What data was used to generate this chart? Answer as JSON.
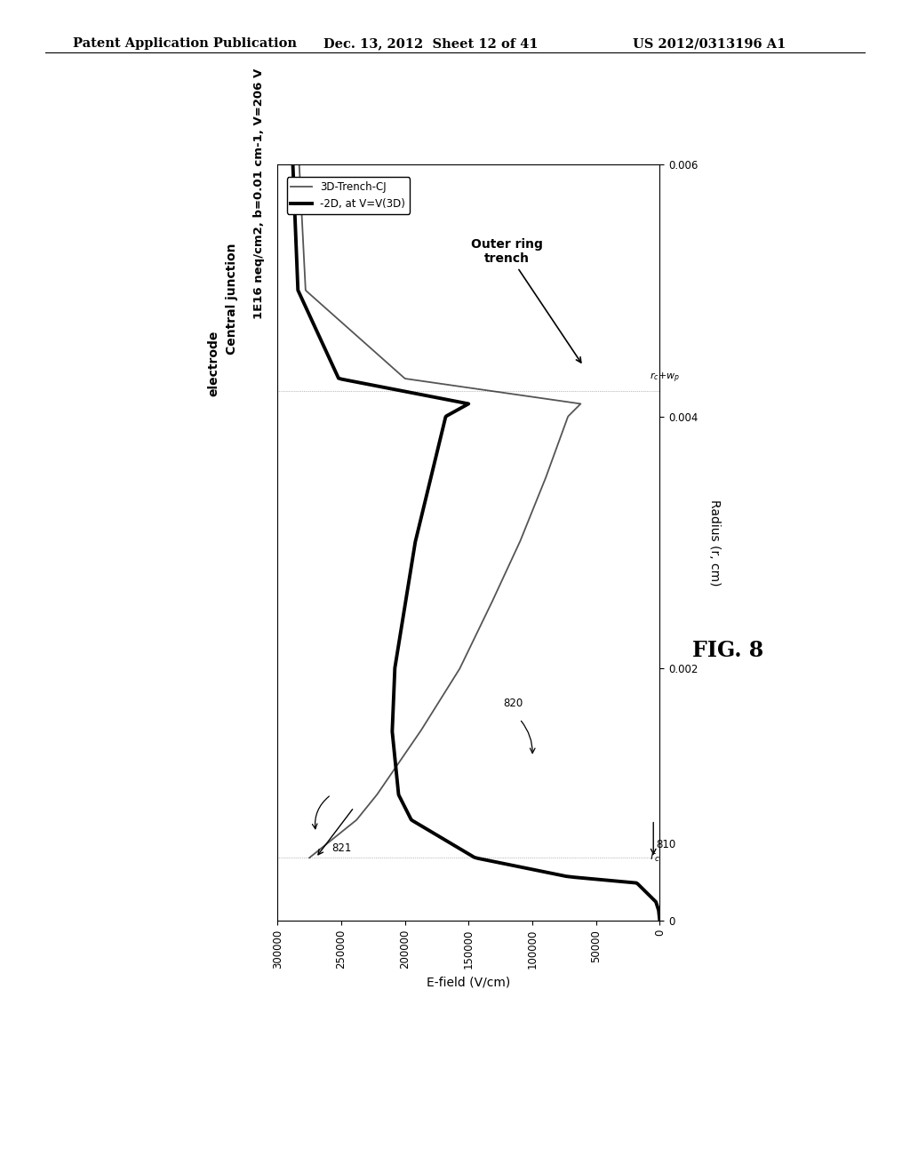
{
  "header_left": "Patent Application Publication",
  "header_center": "Dec. 13, 2012  Sheet 12 of 41",
  "header_right": "US 2012/0313196 A1",
  "fig_label": "FIG. 8",
  "title_line1": "1E16 neq/cm2, b=0.01 cm-1, V=206 V",
  "title_line2": "Central junction",
  "title_line3": "electrode",
  "xlabel": "E-field (V/cm)",
  "ylabel": "Radius (r, cm)",
  "legend_3d": "3D-Trench-CJ",
  "legend_2d": "-2D, at V=V(3D)",
  "annotation_outer": "Outer ring\ntrench",
  "x_ticks": [
    0,
    50000,
    100000,
    150000,
    200000,
    250000,
    300000
  ],
  "x_tick_labels": [
    "0",
    "50000",
    "100000",
    "150000",
    "200000",
    "250000",
    "300000"
  ],
  "y_ticks": [
    0,
    0.002,
    0.004,
    0.006
  ],
  "y_tick_labels": [
    "0",
    "0.002",
    "0.004",
    "0.006"
  ],
  "rc": 0.0005,
  "rcp": 0.0042,
  "r_outer": 0.006,
  "background_color": "#ffffff",
  "line_color_3d": "#555555",
  "line_color_2d": "#000000",
  "lw_3d": 1.3,
  "lw_2d": 2.8
}
